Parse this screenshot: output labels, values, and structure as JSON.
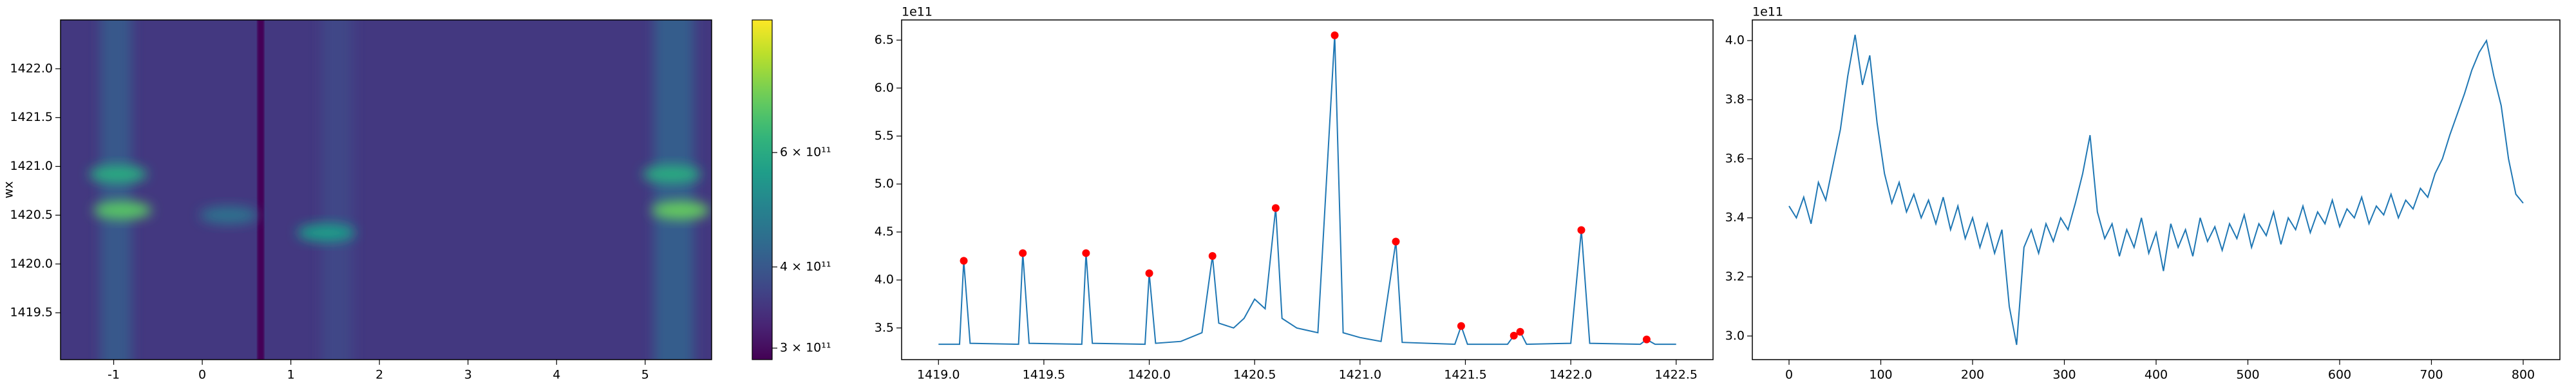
{
  "chart_data": [
    {
      "type": "heatmap",
      "ylabel": "wx",
      "xlim": [
        -1.6,
        5.75
      ],
      "ylim": [
        1419.02,
        1422.5
      ],
      "xticks": [
        -1,
        0,
        1,
        2,
        3,
        4,
        5
      ],
      "yticks": [
        1419.5,
        {
          "value": 1420,
          "label": "1420.0"
        },
        1420.5,
        {
          "value": 1421,
          "label": "1421.0"
        },
        1421.5,
        {
          "value": 1422,
          "label": "1422.0"
        }
      ],
      "colormap": "viridis",
      "color_scale": "log",
      "clim": [
        288000000000,
        960000000000
      ],
      "cticks": [
        {
          "value": 300000000000,
          "label": "3 × 10¹¹"
        },
        {
          "value": 400000000000,
          "label": "4 × 10¹¹"
        },
        {
          "value": 600000000000,
          "label": "6 × 10¹¹"
        }
      ],
      "background": 350000000000,
      "vertical_bands": [
        {
          "x0": -1.15,
          "x1": -0.8,
          "value": 400000000000
        },
        {
          "x0": 5.1,
          "x1": 5.55,
          "value": 410000000000
        },
        {
          "x0": 1.35,
          "x1": 1.7,
          "value": 370000000000
        },
        {
          "x0": 0.62,
          "x1": 0.7,
          "value": 290000000000
        }
      ],
      "horizontal_lines": [
        {
          "y": 1422.0,
          "value": 420000000000
        },
        {
          "y": 1421.2,
          "value": 420000000000
        },
        {
          "y": 1420.9,
          "value": 560000000000
        },
        {
          "y": 1420.6,
          "value": 480000000000
        },
        {
          "y": 1420.3,
          "value": 440000000000
        },
        {
          "y": 1420.0,
          "value": 420000000000
        },
        {
          "y": 1419.75,
          "value": 420000000000
        },
        {
          "y": 1419.5,
          "value": 410000000000
        },
        {
          "y": 1419.15,
          "value": 420000000000
        }
      ],
      "spots": [
        {
          "x": -0.9,
          "y": 1420.55,
          "value": 700000000000
        },
        {
          "x": -0.95,
          "y": 1420.92,
          "value": 600000000000
        },
        {
          "x": 5.4,
          "y": 1420.55,
          "value": 720000000000
        },
        {
          "x": 5.3,
          "y": 1420.92,
          "value": 600000000000
        },
        {
          "x": 1.4,
          "y": 1420.32,
          "value": 560000000000
        },
        {
          "x": 0.3,
          "y": 1420.5,
          "value": 450000000000
        }
      ]
    },
    {
      "type": "line",
      "offset_label": "1e11",
      "xlim": [
        1418.825,
        1422.675
      ],
      "ylim": [
        3.17,
        6.71
      ],
      "xticks": [
        {
          "value": 1419,
          "label": "1419.0"
        },
        1419.5,
        {
          "value": 1420,
          "label": "1420.0"
        },
        1420.5,
        {
          "value": 1421,
          "label": "1421.0"
        },
        1421.5,
        {
          "value": 1422,
          "label": "1422.0"
        },
        1422.5
      ],
      "yticks": [
        3.5,
        {
          "value": 4,
          "label": "4.0"
        },
        4.5,
        {
          "value": 5,
          "label": "5.0"
        },
        5.5,
        {
          "value": 6,
          "label": "6.0"
        },
        6.5
      ],
      "series": [
        {
          "type": "line",
          "color": "#1f77b4",
          "x": [
            1419.0,
            1419.1,
            1419.12,
            1419.15,
            1419.38,
            1419.4,
            1419.43,
            1419.68,
            1419.7,
            1419.73,
            1419.98,
            1420.0,
            1420.03,
            1420.15,
            1420.25,
            1420.3,
            1420.33,
            1420.4,
            1420.45,
            1420.5,
            1420.55,
            1420.6,
            1420.63,
            1420.7,
            1420.8,
            1420.88,
            1420.92,
            1421.0,
            1421.1,
            1421.17,
            1421.2,
            1421.45,
            1421.48,
            1421.51,
            1421.7,
            1421.73,
            1421.76,
            1421.79,
            1422.0,
            1422.05,
            1422.09,
            1422.33,
            1422.36,
            1422.4,
            1422.5
          ],
          "values": [
            3.33,
            3.33,
            4.2,
            3.34,
            3.33,
            4.28,
            3.34,
            3.33,
            4.28,
            3.34,
            3.33,
            4.07,
            3.34,
            3.36,
            3.45,
            4.25,
            3.55,
            3.5,
            3.6,
            3.8,
            3.7,
            4.75,
            3.6,
            3.5,
            3.45,
            6.55,
            3.45,
            3.4,
            3.36,
            4.4,
            3.35,
            3.33,
            3.52,
            3.33,
            3.33,
            3.42,
            3.46,
            3.33,
            3.34,
            4.52,
            3.34,
            3.33,
            3.38,
            3.33,
            3.33
          ]
        },
        {
          "type": "scatter",
          "color": "#ff0000",
          "x": [
            1419.12,
            1419.4,
            1419.7,
            1420.0,
            1420.3,
            1420.6,
            1420.88,
            1421.17,
            1421.48,
            1421.73,
            1421.76,
            1422.05,
            1422.36
          ],
          "values": [
            4.2,
            4.28,
            4.28,
            4.07,
            4.25,
            4.75,
            6.55,
            4.4,
            3.52,
            3.42,
            3.46,
            4.52,
            3.38
          ]
        }
      ]
    },
    {
      "type": "line",
      "offset_label": "1e11",
      "xlim": [
        -40,
        840
      ],
      "ylim": [
        2.92,
        4.07
      ],
      "xticks": [
        0,
        100,
        200,
        300,
        400,
        500,
        600,
        700,
        800
      ],
      "yticks": [
        {
          "value": 3,
          "label": "3.0"
        },
        3.2,
        3.4,
        3.6,
        3.8,
        {
          "value": 4,
          "label": "4.0"
        }
      ],
      "series": [
        {
          "type": "line",
          "color": "#1f77b4",
          "x": [
            0,
            8,
            16,
            24,
            32,
            40,
            48,
            56,
            64,
            72,
            80,
            88,
            96,
            104,
            112,
            120,
            128,
            136,
            144,
            152,
            160,
            168,
            176,
            184,
            192,
            200,
            208,
            216,
            224,
            232,
            240,
            248,
            256,
            264,
            272,
            280,
            288,
            296,
            304,
            312,
            320,
            328,
            336,
            344,
            352,
            360,
            368,
            376,
            384,
            392,
            400,
            408,
            416,
            424,
            432,
            440,
            448,
            456,
            464,
            472,
            480,
            488,
            496,
            504,
            512,
            520,
            528,
            536,
            544,
            552,
            560,
            568,
            576,
            584,
            592,
            600,
            608,
            616,
            624,
            632,
            640,
            648,
            656,
            664,
            672,
            680,
            688,
            696,
            704,
            712,
            720,
            728,
            736,
            744,
            752,
            760,
            768,
            776,
            784,
            792,
            800
          ],
          "values": [
            3.44,
            3.4,
            3.47,
            3.38,
            3.52,
            3.46,
            3.58,
            3.7,
            3.88,
            4.02,
            3.85,
            3.95,
            3.72,
            3.55,
            3.45,
            3.52,
            3.42,
            3.48,
            3.4,
            3.46,
            3.38,
            3.47,
            3.36,
            3.44,
            3.33,
            3.4,
            3.3,
            3.38,
            3.28,
            3.36,
            3.1,
            2.97,
            3.3,
            3.36,
            3.28,
            3.38,
            3.32,
            3.4,
            3.36,
            3.45,
            3.55,
            3.68,
            3.42,
            3.33,
            3.38,
            3.27,
            3.36,
            3.3,
            3.4,
            3.28,
            3.35,
            3.22,
            3.38,
            3.3,
            3.36,
            3.27,
            3.4,
            3.32,
            3.37,
            3.29,
            3.38,
            3.33,
            3.41,
            3.3,
            3.38,
            3.34,
            3.42,
            3.31,
            3.4,
            3.36,
            3.44,
            3.35,
            3.42,
            3.38,
            3.46,
            3.37,
            3.43,
            3.4,
            3.47,
            3.38,
            3.44,
            3.41,
            3.48,
            3.4,
            3.46,
            3.43,
            3.5,
            3.47,
            3.55,
            3.6,
            3.68,
            3.75,
            3.82,
            3.9,
            3.96,
            4.0,
            3.88,
            3.78,
            3.6,
            3.48,
            3.45
          ]
        }
      ]
    }
  ]
}
